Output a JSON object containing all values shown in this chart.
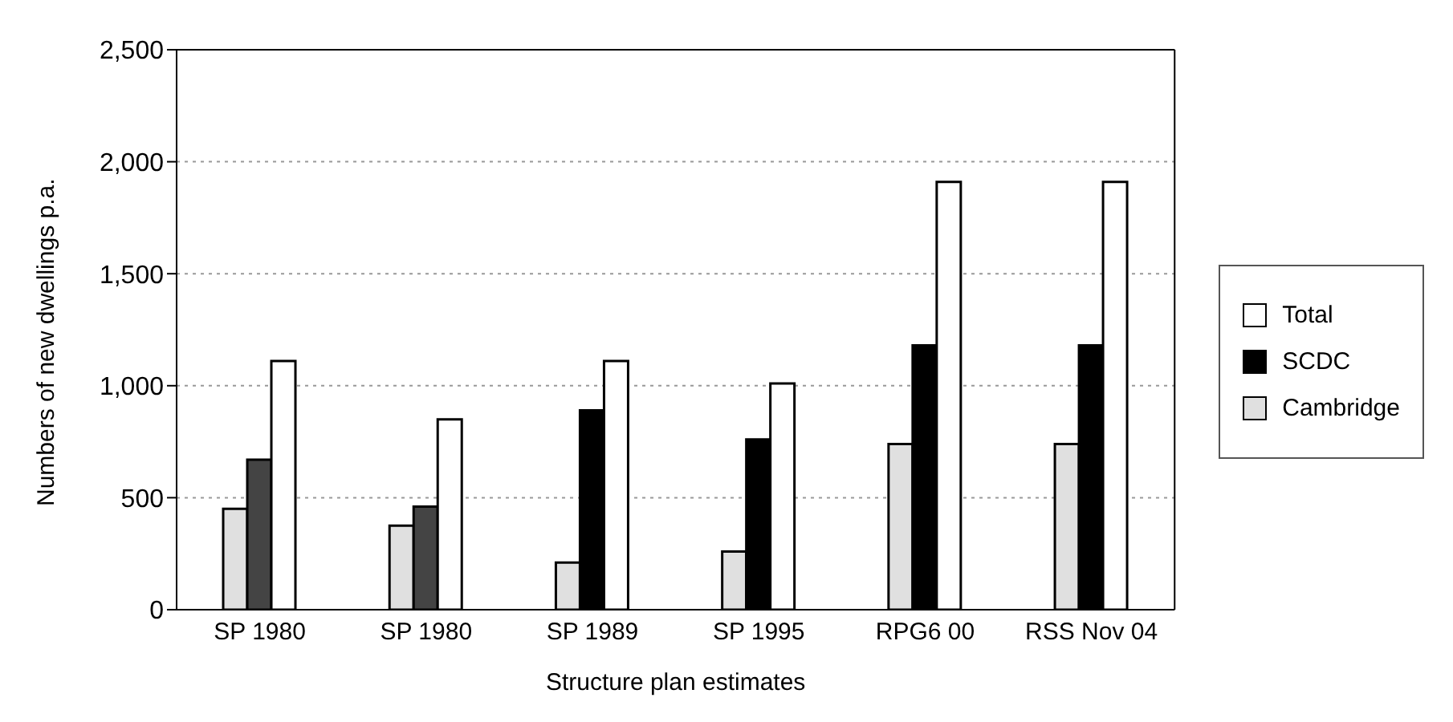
{
  "chart_data": {
    "type": "bar",
    "xlabel": "Structure plan estimates",
    "ylabel": "Numbers of new dwellings p.a.",
    "categories": [
      "SP 1980",
      "SP 1980",
      "SP 1989",
      "SP 1995",
      "RPG6 00",
      "RSS Nov 04"
    ],
    "series": [
      {
        "name": "Cambridge",
        "color": "#e0e0e0",
        "values": [
          450,
          375,
          210,
          260,
          740,
          740
        ]
      },
      {
        "name": "SCDC",
        "color": "#000000",
        "colors": [
          "#444444",
          "#444444",
          "#000000",
          "#000000",
          "#000000",
          "#000000"
        ],
        "values": [
          670,
          460,
          890,
          760,
          1180,
          1180
        ]
      },
      {
        "name": "Total",
        "color": "#ffffff",
        "values": [
          1110,
          850,
          1110,
          1010,
          1910,
          1910
        ]
      }
    ],
    "ylim": [
      0,
      2500
    ],
    "yticks": [
      0,
      500,
      {
        "value": 1000,
        "label": "1,000"
      },
      {
        "value": 1500,
        "label": "1,500"
      },
      {
        "value": 2000,
        "label": "2,000"
      },
      {
        "value": 2500,
        "label": "2,500"
      }
    ],
    "grid": "y",
    "legend": "right"
  }
}
